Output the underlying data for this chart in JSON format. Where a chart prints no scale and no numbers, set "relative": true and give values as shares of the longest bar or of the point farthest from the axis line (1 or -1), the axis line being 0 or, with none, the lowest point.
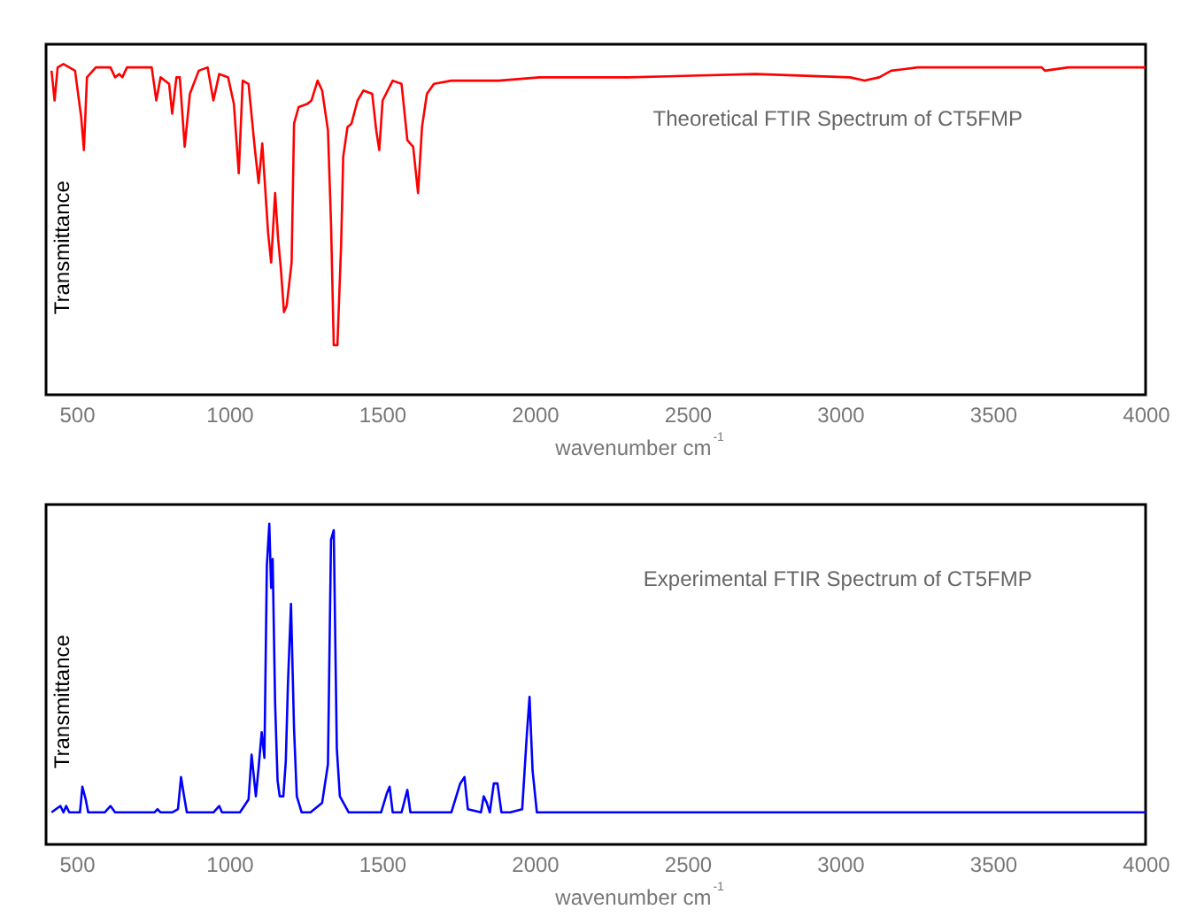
{
  "chart_data": [
    {
      "type": "line",
      "title": "Theoretical FTIR Spectrum of  CT5FMP",
      "xlabel": "wavenumber cm$^{-1}$",
      "ylabel": "Transmittance",
      "relative": true,
      "xlim": [
        400,
        4000
      ],
      "xticks": [
        500,
        1000,
        1500,
        2000,
        2500,
        3000,
        3500,
        4000
      ],
      "series": [
        {
          "color": "#ff0000",
          "x": [
            418,
            428,
            438,
            457,
            495,
            515,
            524,
            534,
            563,
            611,
            626,
            640,
            650,
            665,
            746,
            761,
            775,
            803,
            813,
            827,
            838,
            854,
            871,
            900,
            929,
            948,
            967,
            996,
            1015,
            1031,
            1044,
            1063,
            1083,
            1096,
            1108,
            1127,
            1137,
            1150,
            1160,
            1169,
            1179,
            1188,
            1204,
            1212,
            1227,
            1256,
            1269,
            1289,
            1304,
            1323,
            1333,
            1342,
            1354,
            1366,
            1373,
            1387,
            1400,
            1420,
            1439,
            1468,
            1481,
            1491,
            1502,
            1535,
            1564,
            1583,
            1602,
            1618,
            1631,
            1647,
            1670,
            1727,
            1882,
            2016,
            2162,
            2259,
            2307,
            2723,
            3032,
            3080,
            3128,
            3167,
            3254,
            3660,
            3670,
            3747,
            4000
          ],
          "values": [
            0.98,
            0.89,
            0.99,
            1.0,
            0.98,
            0.84,
            0.74,
            0.96,
            0.99,
            0.99,
            0.96,
            0.97,
            0.96,
            0.99,
            0.99,
            0.89,
            0.96,
            0.94,
            0.85,
            0.96,
            0.96,
            0.75,
            0.91,
            0.98,
            0.99,
            0.89,
            0.97,
            0.96,
            0.88,
            0.67,
            0.95,
            0.94,
            0.75,
            0.64,
            0.76,
            0.49,
            0.4,
            0.61,
            0.47,
            0.38,
            0.25,
            0.27,
            0.4,
            0.82,
            0.87,
            0.88,
            0.89,
            0.95,
            0.92,
            0.8,
            0.52,
            0.15,
            0.15,
            0.45,
            0.72,
            0.81,
            0.82,
            0.89,
            0.92,
            0.91,
            0.8,
            0.74,
            0.89,
            0.95,
            0.94,
            0.77,
            0.75,
            0.61,
            0.81,
            0.91,
            0.94,
            0.95,
            0.95,
            0.96,
            0.96,
            0.96,
            0.96,
            0.97,
            0.96,
            0.95,
            0.96,
            0.98,
            0.99,
            0.99,
            0.98,
            0.99,
            0.99
          ]
        }
      ]
    },
    {
      "type": "line",
      "title": "Experimental FTIR Spectrum of  CT5FMP",
      "xlabel": "wavenumber cm$^{-1}$",
      "ylabel": "Transmittance",
      "relative": true,
      "xlim": [
        400,
        4000
      ],
      "xticks": [
        500,
        1000,
        1500,
        2000,
        2500,
        3000,
        3500,
        4000
      ],
      "series": [
        {
          "color": "#0000ff",
          "x": [
            418,
            447,
            457,
            466,
            476,
            511,
            519,
            530,
            538,
            592,
            611,
            626,
            755,
            765,
            775,
            813,
            832,
            842,
            852,
            861,
            948,
            967,
            976,
            1035,
            1063,
            1073,
            1087,
            1096,
            1106,
            1115,
            1123,
            1131,
            1137,
            1142,
            1150,
            1158,
            1165,
            1177,
            1185,
            1192,
            1202,
            1212,
            1221,
            1237,
            1266,
            1304,
            1323,
            1333,
            1342,
            1352,
            1362,
            1391,
            1497,
            1516,
            1525,
            1535,
            1564,
            1583,
            1593,
            1727,
            1756,
            1770,
            1781,
            1824,
            1833,
            1843,
            1853,
            1866,
            1878,
            1891,
            1920,
            1959,
            1974,
            1983,
            1993,
            2007,
            2036,
            3052,
            3071,
            3090,
            4000
          ],
          "values": [
            0.1,
            0.12,
            0.1,
            0.12,
            0.1,
            0.1,
            0.18,
            0.14,
            0.1,
            0.1,
            0.12,
            0.1,
            0.1,
            0.11,
            0.1,
            0.1,
            0.11,
            0.21,
            0.15,
            0.1,
            0.1,
            0.12,
            0.1,
            0.1,
            0.14,
            0.28,
            0.15,
            0.24,
            0.35,
            0.27,
            0.87,
            1.0,
            0.8,
            0.89,
            0.44,
            0.2,
            0.15,
            0.15,
            0.26,
            0.5,
            0.75,
            0.36,
            0.15,
            0.1,
            0.1,
            0.13,
            0.25,
            0.95,
            0.98,
            0.3,
            0.15,
            0.1,
            0.1,
            0.16,
            0.18,
            0.1,
            0.1,
            0.17,
            0.1,
            0.1,
            0.19,
            0.21,
            0.11,
            0.1,
            0.15,
            0.13,
            0.1,
            0.19,
            0.19,
            0.1,
            0.1,
            0.11,
            0.34,
            0.46,
            0.23,
            0.1,
            0.1,
            0.1,
            0.1,
            0.1,
            0.1
          ]
        }
      ]
    }
  ]
}
